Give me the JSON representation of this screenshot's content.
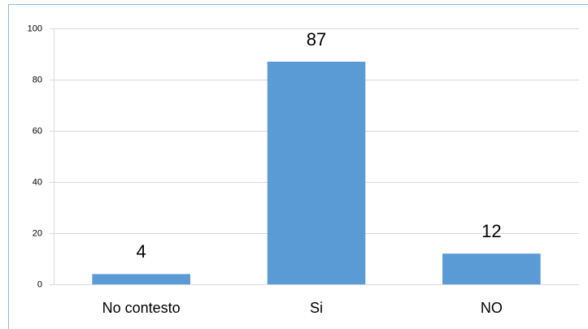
{
  "chart_data": {
    "type": "bar",
    "categories": [
      "No contesto",
      "Si",
      "NO"
    ],
    "values": [
      4,
      87,
      12
    ],
    "color": "#5b9bd5",
    "ylim": [
      0,
      100
    ],
    "yticks": [
      0,
      20,
      40,
      60,
      80,
      100
    ],
    "grid": true,
    "data_labels": true
  }
}
